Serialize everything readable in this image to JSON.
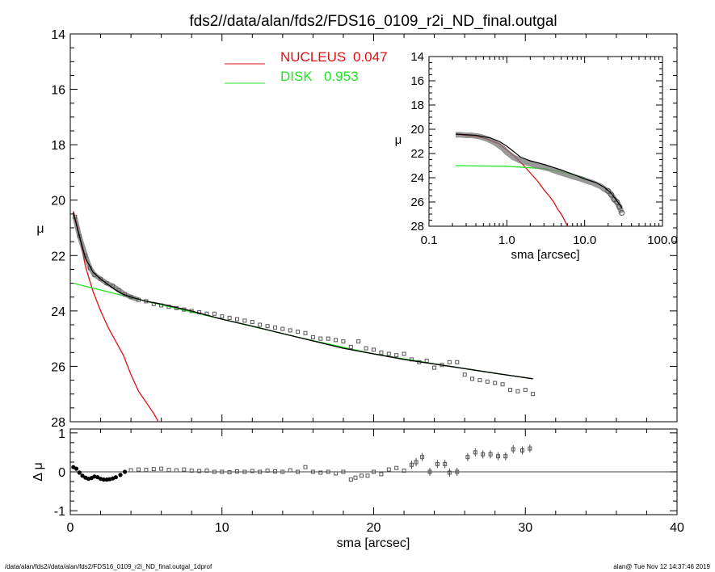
{
  "chart_data": [
    {
      "type": "scatter",
      "panel": "main",
      "title": "fds2//data/alan/fds2/FDS16_0109_r2i_ND_final.outgal",
      "xlabel": "",
      "ylabel": "μ",
      "xlim": [
        0,
        40
      ],
      "ylim": [
        28,
        14
      ],
      "x_ticks": [
        "0",
        "10",
        "20",
        "30",
        "40"
      ],
      "y_ticks": [
        "14",
        "16",
        "18",
        "20",
        "22",
        "24",
        "26",
        "28"
      ],
      "legend": [
        {
          "label": "NUCLEUS",
          "value": "0.047",
          "color": "#e01010"
        },
        {
          "label": "DISK",
          "value": "0.953",
          "color": "#22e622"
        }
      ],
      "series": [
        {
          "name": "NUCLEUS",
          "kind": "line",
          "color": "#e01010",
          "x": [
            0.2,
            0.5,
            1.0,
            1.5,
            2.0,
            2.5,
            3.0,
            3.5,
            4.0,
            4.5,
            5.0,
            5.5,
            5.8
          ],
          "y": [
            20.4,
            21.0,
            22.4,
            23.3,
            24.0,
            24.6,
            25.1,
            25.6,
            26.3,
            26.9,
            27.3,
            27.7,
            28.0
          ]
        },
        {
          "name": "DISK",
          "kind": "line",
          "color": "#22e622",
          "x": [
            0.2,
            5,
            10,
            15,
            20,
            25,
            30.5
          ],
          "y": [
            23.0,
            23.65,
            24.3,
            24.95,
            25.55,
            26.0,
            26.45
          ]
        },
        {
          "name": "model",
          "kind": "line",
          "color": "#000000",
          "x": [
            0.2,
            0.5,
            1.0,
            1.5,
            2.0,
            2.5,
            3.0,
            3.5,
            4.0,
            5.0,
            6.0,
            8.0,
            10.0,
            12.0,
            15.0,
            18.0,
            20.0,
            22.0,
            25.0,
            28.0,
            30.5
          ],
          "y": [
            20.45,
            21.1,
            22.1,
            22.6,
            22.85,
            23.05,
            23.25,
            23.4,
            23.5,
            23.65,
            23.75,
            24.0,
            24.3,
            24.55,
            24.95,
            25.35,
            25.55,
            25.75,
            26.0,
            26.25,
            26.45
          ]
        },
        {
          "name": "data",
          "kind": "points",
          "color": "#555555",
          "x": [
            0.3,
            0.6,
            1.0,
            1.3,
            1.6,
            2.0,
            2.4,
            2.8,
            3.2,
            3.6,
            4.0,
            4.5,
            5.0,
            5.5,
            6.0,
            6.5,
            7.0,
            7.5,
            8.0,
            8.5,
            9.0,
            9.5,
            10.0,
            10.5,
            11.0,
            11.5,
            12.0,
            12.5,
            13.0,
            13.5,
            14.0,
            14.5,
            15.0,
            15.5,
            16.0,
            16.5,
            17.0,
            17.5,
            18.0,
            18.5,
            19.0,
            19.5,
            20.0,
            20.5,
            21.0,
            21.5,
            22.0,
            22.5,
            23.0,
            23.5,
            24.0,
            24.5,
            25.0,
            25.5,
            26.0,
            26.5,
            27.0,
            27.5,
            28.0,
            28.5,
            29.0,
            29.5,
            30.0,
            30.5
          ],
          "y": [
            20.6,
            21.3,
            22.0,
            22.45,
            22.7,
            22.85,
            23.0,
            23.1,
            23.25,
            23.4,
            23.5,
            23.6,
            23.65,
            23.75,
            23.8,
            23.85,
            23.9,
            23.95,
            24.0,
            24.05,
            24.1,
            24.1,
            24.2,
            24.25,
            24.3,
            24.35,
            24.4,
            24.5,
            24.55,
            24.6,
            24.65,
            24.7,
            24.75,
            24.8,
            24.95,
            25.0,
            25.0,
            25.05,
            25.1,
            25.3,
            25.1,
            25.35,
            25.4,
            25.5,
            25.55,
            25.6,
            25.55,
            25.75,
            25.85,
            25.8,
            26.05,
            25.95,
            25.85,
            25.85,
            26.3,
            26.45,
            26.5,
            26.55,
            26.6,
            26.65,
            26.85,
            26.9,
            26.85,
            27.0
          ]
        }
      ]
    },
    {
      "type": "scatter",
      "panel": "residual",
      "xlabel": "sma [arcsec]",
      "ylabel": "Δ μ",
      "xlim": [
        0,
        40
      ],
      "ylim": [
        -1.1,
        1.1
      ],
      "x_ticks": [
        "0",
        "10",
        "20",
        "30",
        "40"
      ],
      "y_ticks": [
        "1",
        "0",
        "-1"
      ],
      "zero_line": 0,
      "series": [
        {
          "name": "residual",
          "kind": "points",
          "color": "#555555",
          "x": [
            0.2,
            0.4,
            0.6,
            0.8,
            1.0,
            1.2,
            1.4,
            1.6,
            1.8,
            2.0,
            2.2,
            2.4,
            2.6,
            2.8,
            3.0,
            3.3,
            3.6,
            4.0,
            4.5,
            5.0,
            5.5,
            6.0,
            6.5,
            7.0,
            7.5,
            8.0,
            8.5,
            9.0,
            9.5,
            10.0,
            10.5,
            11.0,
            11.5,
            12.0,
            12.5,
            13.0,
            13.5,
            14.0,
            14.5,
            15.0,
            15.5,
            16.0,
            16.5,
            17.0,
            17.5,
            18.0,
            18.5,
            18.8,
            19.2,
            19.6,
            20.0,
            20.5,
            21.0,
            21.5,
            22.0,
            22.5,
            22.8,
            23.2,
            23.7,
            24.2,
            24.7,
            25.0,
            25.5,
            26.2,
            26.7,
            27.2,
            27.7,
            28.2,
            28.7,
            29.2,
            29.8,
            30.3
          ],
          "y": [
            0.12,
            0.08,
            -0.02,
            -0.1,
            -0.15,
            -0.18,
            -0.16,
            -0.12,
            -0.14,
            -0.18,
            -0.2,
            -0.2,
            -0.19,
            -0.17,
            -0.14,
            -0.08,
            0.0,
            0.04,
            0.06,
            0.05,
            0.07,
            0.08,
            0.05,
            0.04,
            0.06,
            0.03,
            0.02,
            0.03,
            0.0,
            0.0,
            -0.01,
            0.01,
            0.0,
            0.02,
            0.0,
            0.03,
            0.01,
            0.0,
            0.04,
            0.0,
            0.12,
            0.0,
            -0.02,
            0.0,
            -0.04,
            0.0,
            -0.2,
            -0.15,
            -0.1,
            -0.1,
            0.0,
            -0.06,
            0.06,
            0.1,
            0.03,
            0.18,
            0.25,
            0.38,
            0.0,
            0.2,
            0.2,
            -0.02,
            0.0,
            0.38,
            0.5,
            0.45,
            0.45,
            0.4,
            0.4,
            0.58,
            0.55,
            0.6
          ]
        }
      ]
    },
    {
      "type": "scatter",
      "panel": "inset",
      "xlabel": "sma [arcsec]",
      "ylabel": "μ",
      "x_scale": "log",
      "xlim": [
        0.1,
        100
      ],
      "ylim": [
        28,
        14
      ],
      "x_ticks": [
        "0.1",
        "1.0",
        "10.0",
        "100.0"
      ],
      "y_ticks": [
        "14",
        "16",
        "18",
        "20",
        "22",
        "24",
        "26",
        "28"
      ],
      "series": [
        {
          "name": "NUCLEUS",
          "kind": "line",
          "color": "#e01010",
          "x": [
            0.22,
            0.5,
            0.8,
            1.0,
            1.3,
            1.6,
            2.0,
            2.5,
            3.0,
            3.5,
            4.0,
            4.5,
            5.0,
            5.5,
            6.0
          ],
          "y": [
            20.4,
            20.7,
            21.2,
            21.7,
            22.3,
            22.9,
            23.6,
            24.3,
            25.0,
            25.5,
            26.0,
            26.6,
            27.0,
            27.5,
            28.0
          ]
        },
        {
          "name": "DISK",
          "kind": "line",
          "color": "#22e622",
          "x": [
            0.22,
            1,
            3,
            5,
            10
          ],
          "y": [
            23.0,
            23.05,
            23.25,
            23.5,
            24.0
          ]
        },
        {
          "name": "model",
          "kind": "line",
          "color": "#000000",
          "x": [
            0.22,
            0.4,
            0.6,
            0.8,
            1.0,
            1.2,
            1.5,
            2.0,
            3.0,
            5.0,
            7.0,
            10.0,
            14.0,
            18.0,
            22.0,
            26.0,
            30.0
          ],
          "y": [
            20.4,
            20.5,
            20.7,
            21.0,
            21.4,
            21.8,
            22.3,
            22.6,
            22.9,
            23.35,
            23.7,
            24.1,
            24.4,
            24.8,
            25.3,
            25.9,
            26.5
          ]
        },
        {
          "name": "data",
          "kind": "points",
          "color": "#555555",
          "x": [
            0.22,
            0.25,
            0.3,
            0.35,
            0.4,
            0.45,
            0.5,
            0.56,
            0.63,
            0.7,
            0.8,
            0.9,
            1.0,
            1.1,
            1.2,
            1.35,
            1.5,
            1.7,
            2.0,
            2.3,
            2.6,
            3.0,
            3.5,
            4.0,
            4.5,
            5.0,
            5.6,
            6.3,
            7.0,
            8.0,
            9.0,
            10.0,
            11.0,
            12.5,
            14.0,
            16.0,
            18.0,
            20.0,
            22.0,
            24.0,
            26.0,
            28.0,
            30.0
          ],
          "y": [
            20.45,
            20.45,
            20.5,
            20.5,
            20.55,
            20.6,
            20.7,
            20.8,
            20.95,
            21.1,
            21.35,
            21.6,
            21.9,
            22.1,
            22.3,
            22.45,
            22.6,
            22.7,
            22.85,
            22.95,
            23.05,
            23.15,
            23.25,
            23.4,
            23.5,
            23.6,
            23.7,
            23.8,
            23.9,
            24.0,
            24.1,
            24.2,
            24.3,
            24.4,
            24.55,
            24.7,
            24.95,
            25.1,
            25.4,
            25.8,
            26.0,
            26.4,
            26.9
          ]
        }
      ]
    }
  ],
  "footer": {
    "left": "/data/alan/fds2//data/alan/fds2/FDS16_0109_r2i_ND_final.outgal_1dprof",
    "right": "alan@  Tue Nov 12 14:37:46 2019"
  }
}
